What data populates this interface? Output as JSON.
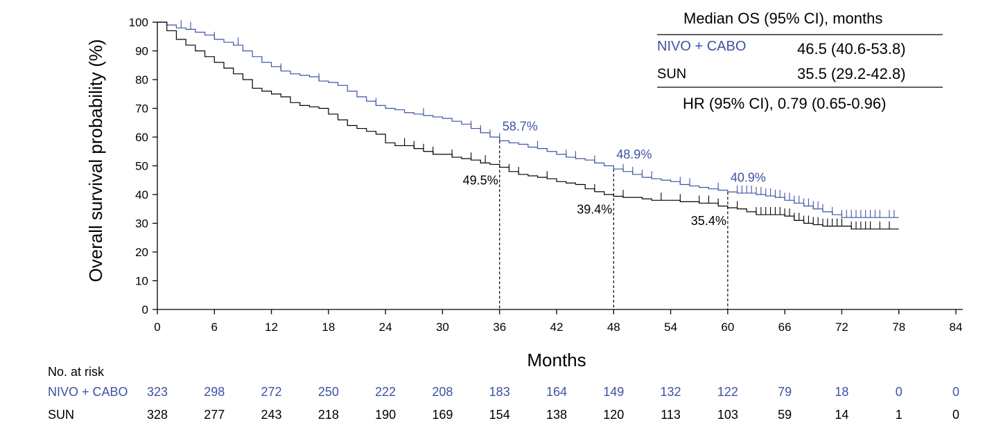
{
  "colors": {
    "nivo": "#3F51A3",
    "sun": "#000000"
  },
  "chart_data": {
    "type": "line",
    "subtype": "kaplan-meier",
    "xlabel": "Months",
    "ylabel": "Overall survival probability (%)",
    "xlim": [
      0,
      84
    ],
    "ylim": [
      0,
      100
    ],
    "xticks": [
      0,
      6,
      12,
      18,
      24,
      30,
      36,
      42,
      48,
      54,
      60,
      66,
      72,
      78,
      84
    ],
    "yticks": [
      0,
      10,
      20,
      30,
      40,
      50,
      60,
      70,
      80,
      90,
      100
    ],
    "grid": false,
    "series": [
      {
        "name": "NIVO + CABO",
        "color": "#3F51A3",
        "x": [
          0,
          1,
          2,
          3,
          4,
          5,
          6,
          7,
          8,
          9,
          10,
          11,
          12,
          13,
          14,
          15,
          16,
          17,
          18,
          19,
          20,
          21,
          22,
          23,
          24,
          25,
          26,
          27,
          28,
          29,
          30,
          31,
          32,
          33,
          34,
          35,
          36,
          37,
          38,
          39,
          40,
          41,
          42,
          43,
          44,
          45,
          46,
          47,
          48,
          49,
          50,
          51,
          52,
          53,
          54,
          55,
          56,
          57,
          58,
          59,
          60,
          61,
          62,
          63,
          64,
          65,
          66,
          67,
          68,
          69,
          70,
          71,
          72,
          73,
          74,
          75,
          76,
          77,
          78
        ],
        "y": [
          100,
          99,
          98,
          97.5,
          96.5,
          95.5,
          94,
          93,
          92,
          90,
          88,
          86,
          84.5,
          83,
          82,
          81.5,
          81,
          79.5,
          79,
          78,
          76,
          74,
          72.5,
          71,
          70,
          69.5,
          68.5,
          68,
          67.5,
          67,
          66.5,
          65.5,
          64.5,
          63,
          61.5,
          60,
          58.7,
          58,
          57.5,
          56.5,
          56,
          55,
          54,
          53,
          52.5,
          52,
          51,
          50,
          48.9,
          48,
          47,
          46,
          45.5,
          45,
          44.5,
          43.5,
          43,
          42.5,
          42,
          41.5,
          40.9,
          40.5,
          40.5,
          40,
          39.5,
          39,
          38,
          37,
          36,
          35,
          34,
          33,
          32,
          32,
          32,
          32,
          32,
          32,
          32
        ],
        "censor_x": [
          2.5,
          3.5,
          6,
          8.5,
          13,
          17,
          23,
          28,
          33,
          34,
          35,
          36,
          40,
          43,
          44,
          46,
          49,
          50,
          51,
          52,
          55,
          56,
          59,
          61,
          61.5,
          62,
          62.5,
          63,
          63.5,
          64,
          64.5,
          65,
          65.5,
          66,
          66.5,
          67,
          67.5,
          68,
          68.5,
          69,
          69.5,
          70,
          71,
          72,
          72.5,
          73,
          73.5,
          74,
          74.5,
          75,
          75.5,
          76,
          77,
          77.5
        ],
        "annotations": [
          {
            "x": 36,
            "y": 58.7,
            "label": "58.7%"
          },
          {
            "x": 48,
            "y": 48.9,
            "label": "48.9%"
          },
          {
            "x": 60,
            "y": 40.9,
            "label": "40.9%"
          }
        ]
      },
      {
        "name": "SUN",
        "color": "#000000",
        "x": [
          0,
          1,
          2,
          3,
          4,
          5,
          6,
          7,
          8,
          9,
          10,
          11,
          12,
          13,
          14,
          15,
          16,
          17,
          18,
          19,
          20,
          21,
          22,
          23,
          24,
          25,
          26,
          27,
          28,
          29,
          30,
          31,
          32,
          33,
          34,
          35,
          36,
          37,
          38,
          39,
          40,
          41,
          42,
          43,
          44,
          45,
          46,
          47,
          48,
          49,
          50,
          51,
          52,
          53,
          54,
          55,
          56,
          57,
          58,
          59,
          60,
          61,
          62,
          63,
          64,
          65,
          66,
          67,
          68,
          69,
          70,
          71,
          72,
          73,
          74,
          75,
          76,
          77,
          78
        ],
        "y": [
          100,
          97,
          94,
          92,
          90,
          88,
          86,
          84,
          82,
          80,
          77,
          76,
          75,
          74,
          72,
          71,
          70.5,
          70,
          68,
          66,
          64,
          63,
          62,
          61,
          58,
          57,
          57,
          56,
          55,
          54,
          54,
          53,
          52.5,
          52,
          51,
          50.5,
          49.5,
          48,
          47,
          46.5,
          46,
          45.5,
          44.5,
          44,
          43.5,
          42,
          41,
          40,
          39.4,
          39,
          39,
          38.5,
          38,
          38,
          38,
          37.5,
          37.5,
          37,
          37,
          36,
          35.4,
          35,
          34,
          33,
          33,
          33,
          32.5,
          31,
          30,
          29.5,
          29,
          29,
          29,
          28,
          28,
          28,
          28,
          28,
          28
        ],
        "censor_x": [
          26,
          27,
          28,
          29,
          31,
          33,
          34.5,
          37,
          38,
          41,
          46,
          49,
          53,
          55,
          57,
          58,
          59,
          61,
          63,
          63.5,
          64,
          64.5,
          65,
          65.5,
          66,
          66.5,
          67,
          67.5,
          68,
          68.5,
          69,
          69.5,
          70,
          70.5,
          71,
          71.5,
          72,
          73,
          73.5,
          74,
          74.5,
          75,
          76,
          77
        ],
        "annotations": [
          {
            "x": 36,
            "y": 49.5,
            "label": "49.5%"
          },
          {
            "x": 48,
            "y": 39.4,
            "label": "39.4%"
          },
          {
            "x": 60,
            "y": 35.4,
            "label": "35.4%"
          }
        ]
      }
    ],
    "reference_lines_x": [
      36,
      48,
      60
    ]
  },
  "legend": {
    "title": "Median OS (95% CI), months",
    "rows": [
      {
        "name": "NIVO + CABO",
        "value": "46.5 (40.6-53.8)"
      },
      {
        "name": "SUN",
        "value": "35.5 (29.2-42.8)"
      }
    ],
    "hr": "HR (95% CI), 0.79 (0.65-0.96)"
  },
  "risk_table": {
    "title": "No. at risk",
    "rows": [
      {
        "name": "NIVO + CABO",
        "values": [
          "323",
          "298",
          "272",
          "250",
          "222",
          "208",
          "183",
          "164",
          "149",
          "132",
          "122",
          "79",
          "18",
          "0",
          "0"
        ]
      },
      {
        "name": "SUN",
        "values": [
          "328",
          "277",
          "243",
          "218",
          "190",
          "169",
          "154",
          "138",
          "120",
          "113",
          "103",
          "59",
          "14",
          "1",
          "0"
        ]
      }
    ]
  }
}
